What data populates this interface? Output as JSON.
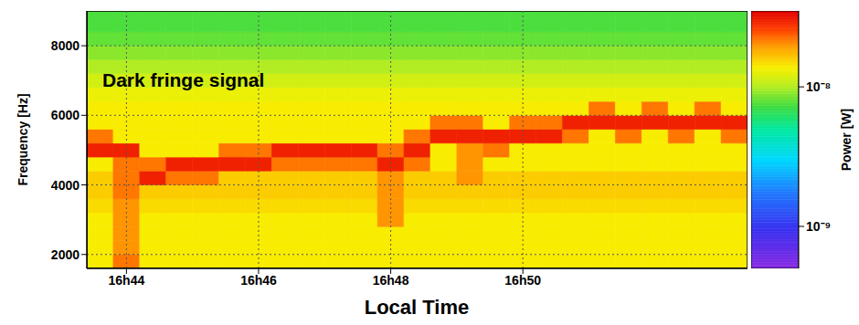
{
  "chart_data": {
    "type": "heatmap",
    "annotation": "Dark fringe signal",
    "x_label": "Local Time",
    "y_label": "Frequency [Hz]",
    "xlim": [
      1003.4,
      1013.4
    ],
    "xticks": [
      {
        "value": 1004,
        "label": "16h44"
      },
      {
        "value": 1006,
        "label": "16h46"
      },
      {
        "value": 1008,
        "label": "16h48"
      },
      {
        "value": 1010,
        "label": "16h50"
      }
    ],
    "ylim": [
      1600,
      9000
    ],
    "yticks": [
      2000,
      4000,
      6000,
      8000
    ],
    "grid": true,
    "x_bins": [
      1003.4,
      1003.8,
      1004.2,
      1004.6,
      1005.0,
      1005.4,
      1005.8,
      1006.2,
      1006.6,
      1007.0,
      1007.4,
      1007.8,
      1008.2,
      1008.6,
      1009.0,
      1009.4,
      1009.8,
      1010.2,
      1010.6,
      1011.0,
      1011.4,
      1011.8,
      1012.2,
      1012.6,
      1013.0,
      1013.4
    ],
    "y_bins": [
      1600,
      2000,
      2400,
      2800,
      3200,
      3600,
      4000,
      4400,
      4800,
      5200,
      5600,
      6000,
      6400,
      6800,
      7200,
      7600,
      8000,
      8400,
      8800,
      9000
    ],
    "cells": [
      [
        1.4e-08,
        1.4e-08,
        1.4e-08,
        1.4e-08,
        1.5e-08,
        1.6e-08,
        1.6e-08,
        1.4e-08,
        3e-08,
        2.2e-08,
        1.4e-08,
        1.4e-08,
        1.3e-08,
        1.15e-08,
        1e-08,
        9e-09,
        8e-09,
        7.5e-09,
        7.5e-09
      ],
      [
        2.2e-08,
        2e-08,
        2e-08,
        2e-08,
        2e-08,
        2.2e-08,
        2.2e-08,
        2.2e-08,
        3e-08,
        1.4e-08,
        1.4e-08,
        1.4e-08,
        1.3e-08,
        1.15e-08,
        1e-08,
        9e-09,
        8e-09,
        7.5e-09,
        7.5e-09
      ],
      [
        1.4e-08,
        1.4e-08,
        1.4e-08,
        1.4e-08,
        1.5e-08,
        1.6e-08,
        3e-08,
        2.2e-08,
        1.4e-08,
        1.4e-08,
        1.4e-08,
        1.4e-08,
        1.3e-08,
        1.15e-08,
        1e-08,
        9e-09,
        8e-09,
        7.5e-09,
        7.5e-09
      ],
      [
        1.4e-08,
        1.4e-08,
        1.4e-08,
        1.4e-08,
        1.5e-08,
        1.6e-08,
        2.2e-08,
        3e-08,
        1.4e-08,
        1.4e-08,
        1.4e-08,
        1.4e-08,
        1.3e-08,
        1.15e-08,
        1e-08,
        9e-09,
        8e-09,
        7.5e-09,
        7.5e-09
      ],
      [
        1.4e-08,
        1.4e-08,
        1.4e-08,
        1.4e-08,
        1.5e-08,
        1.6e-08,
        2.2e-08,
        3e-08,
        1.4e-08,
        1.4e-08,
        1.4e-08,
        1.4e-08,
        1.3e-08,
        1.15e-08,
        1e-08,
        9e-09,
        8e-09,
        7.5e-09,
        7.5e-09
      ],
      [
        1.4e-08,
        1.4e-08,
        1.4e-08,
        1.4e-08,
        1.5e-08,
        1.6e-08,
        1.6e-08,
        3e-08,
        2.2e-08,
        1.4e-08,
        1.4e-08,
        1.4e-08,
        1.3e-08,
        1.15e-08,
        1e-08,
        9e-09,
        8e-09,
        7.5e-09,
        7.5e-09
      ],
      [
        1.4e-08,
        1.4e-08,
        1.4e-08,
        1.4e-08,
        1.5e-08,
        1.6e-08,
        1.6e-08,
        3e-08,
        2.2e-08,
        1.4e-08,
        1.4e-08,
        1.4e-08,
        1.3e-08,
        1.15e-08,
        1e-08,
        9e-09,
        8e-09,
        7.5e-09,
        7.5e-09
      ],
      [
        1.4e-08,
        1.4e-08,
        1.4e-08,
        1.4e-08,
        1.5e-08,
        1.6e-08,
        1.6e-08,
        2.2e-08,
        3e-08,
        1.4e-08,
        1.4e-08,
        1.4e-08,
        1.3e-08,
        1.15e-08,
        1e-08,
        9e-09,
        8e-09,
        7.5e-09,
        7.5e-09
      ],
      [
        1.4e-08,
        1.4e-08,
        1.4e-08,
        1.4e-08,
        1.5e-08,
        1.6e-08,
        1.6e-08,
        2.2e-08,
        3e-08,
        1.4e-08,
        1.4e-08,
        1.4e-08,
        1.3e-08,
        1.15e-08,
        1e-08,
        9e-09,
        8e-09,
        7.5e-09,
        7.5e-09
      ],
      [
        1.4e-08,
        1.4e-08,
        1.4e-08,
        1.4e-08,
        1.5e-08,
        1.6e-08,
        1.6e-08,
        2.2e-08,
        3e-08,
        1.4e-08,
        1.4e-08,
        1.4e-08,
        1.3e-08,
        1.15e-08,
        1e-08,
        9e-09,
        8e-09,
        7.5e-09,
        7.5e-09
      ],
      [
        1.4e-08,
        1.4e-08,
        1.4e-08,
        1.4e-08,
        1.5e-08,
        1.6e-08,
        1.6e-08,
        2.2e-08,
        3e-08,
        1.4e-08,
        1.4e-08,
        1.4e-08,
        1.3e-08,
        1.15e-08,
        1e-08,
        9e-09,
        8e-09,
        7.5e-09,
        7.5e-09
      ],
      [
        1.4e-08,
        1.4e-08,
        1.4e-08,
        2e-08,
        2e-08,
        2e-08,
        2e-08,
        3e-08,
        2.2e-08,
        1.4e-08,
        1.4e-08,
        1.4e-08,
        1.3e-08,
        1.15e-08,
        1e-08,
        9e-09,
        8e-09,
        7.5e-09,
        7.5e-09
      ],
      [
        1.4e-08,
        1.4e-08,
        1.4e-08,
        1.4e-08,
        1.5e-08,
        1.6e-08,
        1.6e-08,
        2.2e-08,
        3e-08,
        2.2e-08,
        1.4e-08,
        1.4e-08,
        1.3e-08,
        1.15e-08,
        1e-08,
        9e-09,
        8e-09,
        7.5e-09,
        7.5e-09
      ],
      [
        1.4e-08,
        1.4e-08,
        1.4e-08,
        1.4e-08,
        1.5e-08,
        1.6e-08,
        1.6e-08,
        1.4e-08,
        1.4e-08,
        3e-08,
        2.2e-08,
        1.4e-08,
        1.3e-08,
        1.15e-08,
        1e-08,
        9e-09,
        8e-09,
        7.5e-09,
        7.5e-09
      ],
      [
        1.4e-08,
        1.4e-08,
        1.4e-08,
        1.4e-08,
        1.5e-08,
        1.6e-08,
        2e-08,
        2e-08,
        2e-08,
        3e-08,
        2.2e-08,
        1.4e-08,
        1.3e-08,
        1.15e-08,
        1e-08,
        9e-09,
        8e-09,
        7.5e-09,
        7.5e-09
      ],
      [
        1.4e-08,
        1.4e-08,
        1.4e-08,
        1.4e-08,
        1.5e-08,
        1.6e-08,
        1.6e-08,
        1.4e-08,
        2.2e-08,
        3e-08,
        1.4e-08,
        1.4e-08,
        1.3e-08,
        1.15e-08,
        1e-08,
        9e-09,
        8e-09,
        7.5e-09,
        7.5e-09
      ],
      [
        1.4e-08,
        1.4e-08,
        1.4e-08,
        1.4e-08,
        1.5e-08,
        1.6e-08,
        1.6e-08,
        1.4e-08,
        1.4e-08,
        3e-08,
        2.2e-08,
        1.4e-08,
        1.3e-08,
        1.15e-08,
        1e-08,
        9e-09,
        8e-09,
        7.5e-09,
        7.5e-09
      ],
      [
        1.4e-08,
        1.4e-08,
        1.4e-08,
        1.4e-08,
        1.5e-08,
        1.6e-08,
        1.6e-08,
        1.4e-08,
        1.4e-08,
        3e-08,
        2.2e-08,
        1.4e-08,
        1.3e-08,
        1.15e-08,
        1e-08,
        9e-09,
        8e-09,
        7.5e-09,
        7.5e-09
      ],
      [
        1.4e-08,
        1.4e-08,
        1.4e-08,
        1.4e-08,
        1.5e-08,
        1.6e-08,
        1.6e-08,
        1.4e-08,
        1.4e-08,
        2.2e-08,
        3e-08,
        1.4e-08,
        1.3e-08,
        1.15e-08,
        1e-08,
        9e-09,
        8e-09,
        7.5e-09,
        7.5e-09
      ],
      [
        1.4e-08,
        1.4e-08,
        1.4e-08,
        1.4e-08,
        1.5e-08,
        1.6e-08,
        1.6e-08,
        1.4e-08,
        1.4e-08,
        1.4e-08,
        3e-08,
        2.2e-08,
        1.3e-08,
        1.15e-08,
        1e-08,
        9e-09,
        8e-09,
        7.5e-09,
        7.5e-09
      ],
      [
        1.4e-08,
        1.4e-08,
        1.4e-08,
        1.4e-08,
        1.5e-08,
        1.6e-08,
        1.6e-08,
        1.4e-08,
        1.4e-08,
        2.2e-08,
        3e-08,
        1.4e-08,
        1.3e-08,
        1.15e-08,
        1e-08,
        9e-09,
        8e-09,
        7.5e-09,
        7.5e-09
      ],
      [
        1.4e-08,
        1.4e-08,
        1.4e-08,
        1.4e-08,
        1.5e-08,
        1.6e-08,
        1.6e-08,
        1.4e-08,
        1.4e-08,
        1.4e-08,
        3e-08,
        2.2e-08,
        1.3e-08,
        1.15e-08,
        1e-08,
        9e-09,
        8e-09,
        7.5e-09,
        7.5e-09
      ],
      [
        1.4e-08,
        1.4e-08,
        1.4e-08,
        1.4e-08,
        1.5e-08,
        1.6e-08,
        1.6e-08,
        1.4e-08,
        1.4e-08,
        2.2e-08,
        3e-08,
        1.4e-08,
        1.3e-08,
        1.15e-08,
        1e-08,
        9e-09,
        8e-09,
        7.5e-09,
        7.5e-09
      ],
      [
        1.4e-08,
        1.4e-08,
        1.4e-08,
        1.4e-08,
        1.5e-08,
        1.6e-08,
        1.6e-08,
        1.4e-08,
        1.4e-08,
        1.4e-08,
        3e-08,
        2.2e-08,
        1.3e-08,
        1.15e-08,
        1e-08,
        9e-09,
        8e-09,
        7.5e-09,
        7.5e-09
      ],
      [
        1.4e-08,
        1.4e-08,
        1.4e-08,
        1.4e-08,
        1.5e-08,
        1.6e-08,
        1.6e-08,
        1.4e-08,
        1.4e-08,
        2.2e-08,
        3e-08,
        1.4e-08,
        1.3e-08,
        1.15e-08,
        1e-08,
        9e-09,
        8e-09,
        7.5e-09,
        7.5e-09
      ]
    ],
    "colorbar": {
      "label": "Power [W]",
      "log": true,
      "lim": [
        5e-10,
        3.5e-08
      ],
      "ticks": [
        {
          "value": 1e-09,
          "label": "10⁻⁹"
        },
        {
          "value": 1e-08,
          "label": "10⁻⁸"
        }
      ]
    }
  }
}
